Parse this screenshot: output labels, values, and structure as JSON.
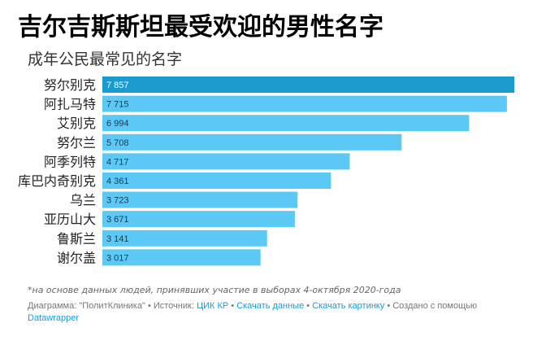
{
  "header": {
    "title": "吉尔吉斯斯坦最受欢迎的男性名字",
    "subtitle": "成年公民最常见的名字"
  },
  "colors": {
    "bar": "#5bc8f5",
    "bar_highlight": "#1a9acd",
    "link": "#1a9ad9"
  },
  "chart_data": {
    "type": "bar",
    "orientation": "horizontal",
    "categories": [
      "努尔别克",
      "阿扎马特",
      "艾别克",
      "努尔兰",
      "阿季列特",
      "库巴内奇别克",
      "乌兰",
      "亚历山大",
      "鲁斯兰",
      "谢尔盖"
    ],
    "values": [
      7857,
      7715,
      6994,
      5708,
      4717,
      4361,
      3723,
      3671,
      3141,
      3017
    ],
    "value_labels": [
      "7 857",
      "7 715",
      "6 994",
      "5 708",
      "4 717",
      "4 361",
      "3 723",
      "3 671",
      "3 141",
      "3 017"
    ],
    "xlim": [
      0,
      7857
    ],
    "highlight_index": 0
  },
  "footer": {
    "note": "*на основе данных людей, принявших участие в выборах 4-октября 2020-года",
    "chart_by": "Диаграмма: \"ПолитКлиника\"",
    "source_label": "Источник:",
    "source_link": "ЦИК КР",
    "download_data": "Скачать данные",
    "download_image": "Скачать картинку",
    "created_with": "Создано с помощью",
    "tool": "Datawrapper",
    "separator": "•"
  }
}
